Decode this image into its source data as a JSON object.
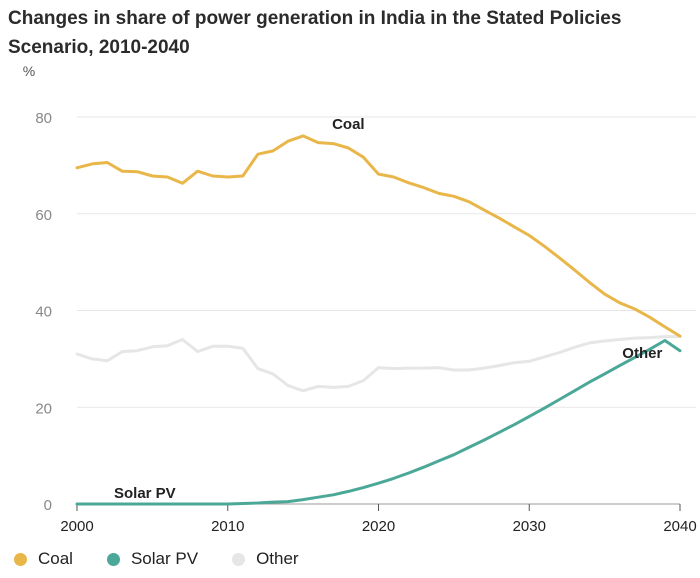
{
  "chart_data": {
    "type": "line",
    "title": "Changes in share of power generation in India in the Stated Policies Scenario, 2010-2040",
    "ylabel": "%",
    "xlabel": "",
    "ylim": [
      0,
      80
    ],
    "xlim": [
      2000,
      2040
    ],
    "yticks": [
      0,
      20,
      40,
      60,
      80
    ],
    "xticks": [
      2000,
      2010,
      2020,
      2030,
      2040
    ],
    "grid": true,
    "legend_position": "bottom",
    "series": [
      {
        "name": "Coal",
        "label": "Coal",
        "color": "#E9B649",
        "x": [
          2000,
          2001,
          2002,
          2003,
          2004,
          2005,
          2006,
          2007,
          2008,
          2009,
          2010,
          2011,
          2012,
          2013,
          2014,
          2015,
          2016,
          2017,
          2018,
          2019,
          2020,
          2021,
          2022,
          2023,
          2024,
          2025,
          2026,
          2027,
          2028,
          2029,
          2030,
          2031,
          2032,
          2033,
          2034,
          2035,
          2036,
          2037,
          2038,
          2039,
          2040
        ],
        "values": [
          69.5,
          70.3,
          70.6,
          68.8,
          68.7,
          67.8,
          67.6,
          66.3,
          68.8,
          67.8,
          67.6,
          67.8,
          72.3,
          73.0,
          75.0,
          76.1,
          74.7,
          74.5,
          73.6,
          71.7,
          68.2,
          67.6,
          66.4,
          65.4,
          64.2,
          63.6,
          62.5,
          60.8,
          59.1,
          57.3,
          55.5,
          53.3,
          50.9,
          48.4,
          45.8,
          43.4,
          41.6,
          40.3,
          38.6,
          36.6,
          34.7
        ]
      },
      {
        "name": "Solar PV",
        "label": "Solar PV",
        "color": "#4BA898",
        "x": [
          2000,
          2001,
          2002,
          2003,
          2004,
          2005,
          2006,
          2007,
          2008,
          2009,
          2010,
          2011,
          2012,
          2013,
          2014,
          2015,
          2016,
          2017,
          2018,
          2019,
          2020,
          2021,
          2022,
          2023,
          2024,
          2025,
          2026,
          2027,
          2028,
          2029,
          2030,
          2031,
          2032,
          2033,
          2034,
          2035,
          2036,
          2037,
          2038,
          2039,
          2040
        ],
        "values": [
          0,
          0,
          0,
          0,
          0,
          0,
          0,
          0,
          0,
          0,
          0,
          0.1,
          0.2,
          0.4,
          0.5,
          0.9,
          1.4,
          1.9,
          2.6,
          3.4,
          4.3,
          5.3,
          6.4,
          7.6,
          8.9,
          10.2,
          11.7,
          13.2,
          14.8,
          16.4,
          18.1,
          19.8,
          21.6,
          23.4,
          25.2,
          26.9,
          28.6,
          30.3,
          32.0,
          33.8,
          31.7
        ]
      },
      {
        "name": "Other",
        "label": "Other",
        "color": "#E6E6E6",
        "x": [
          2000,
          2001,
          2002,
          2003,
          2004,
          2005,
          2006,
          2007,
          2008,
          2009,
          2010,
          2011,
          2012,
          2013,
          2014,
          2015,
          2016,
          2017,
          2018,
          2019,
          2020,
          2021,
          2022,
          2023,
          2024,
          2025,
          2026,
          2027,
          2028,
          2029,
          2030,
          2031,
          2032,
          2033,
          2034,
          2035,
          2036,
          2037,
          2038,
          2039,
          2040
        ],
        "values": [
          31.0,
          30.0,
          29.6,
          31.5,
          31.7,
          32.5,
          32.7,
          34.0,
          31.5,
          32.6,
          32.6,
          32.2,
          28.0,
          26.9,
          24.5,
          23.4,
          24.3,
          24.1,
          24.3,
          25.5,
          28.2,
          28.0,
          28.1,
          28.1,
          28.2,
          27.7,
          27.7,
          28.1,
          28.6,
          29.2,
          29.5,
          30.4,
          31.3,
          32.4,
          33.3,
          33.7,
          34.0,
          34.3,
          34.4,
          34.6,
          34.6
        ]
      }
    ],
    "legend": [
      {
        "name": "Coal",
        "color": "#E9B649"
      },
      {
        "name": "Solar PV",
        "color": "#4BA898"
      },
      {
        "name": "Other",
        "color": "#E6E6E6"
      }
    ]
  }
}
